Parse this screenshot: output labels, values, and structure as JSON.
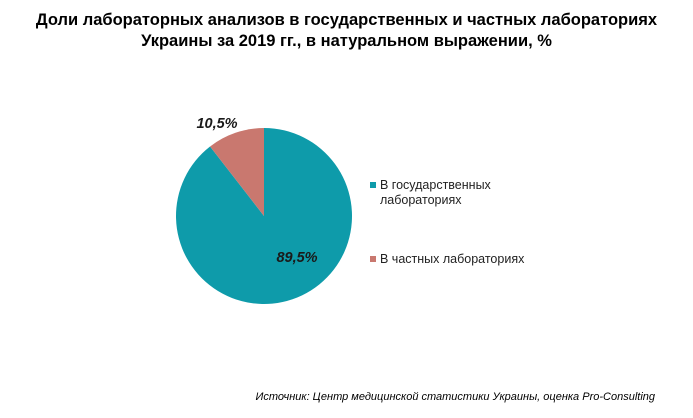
{
  "title": {
    "line1": "Доли лабораторных анализов в государственных и частных лабораториях",
    "line2": "Украины за 2019 гг., в натуральном выражении, %"
  },
  "chart_data": {
    "type": "pie",
    "slices": [
      {
        "label": "В государственных лабораториях",
        "value": 89.5,
        "data_label": "89,5%",
        "color": "#0E9BAA"
      },
      {
        "label": "В частных лабораториях",
        "value": 10.5,
        "data_label": "10,5%",
        "color": "#C9786F"
      }
    ],
    "legend_position": "right"
  },
  "legend": [
    {
      "line1": "В государственных",
      "line2": "лабораториях",
      "color": "#0E9BAA"
    },
    {
      "line1": "В частных лабораториях",
      "line2": "",
      "color": "#C9786F"
    }
  ],
  "source": "Источник: Центр медицинской статистики Украины, оценка Pro-Consulting"
}
